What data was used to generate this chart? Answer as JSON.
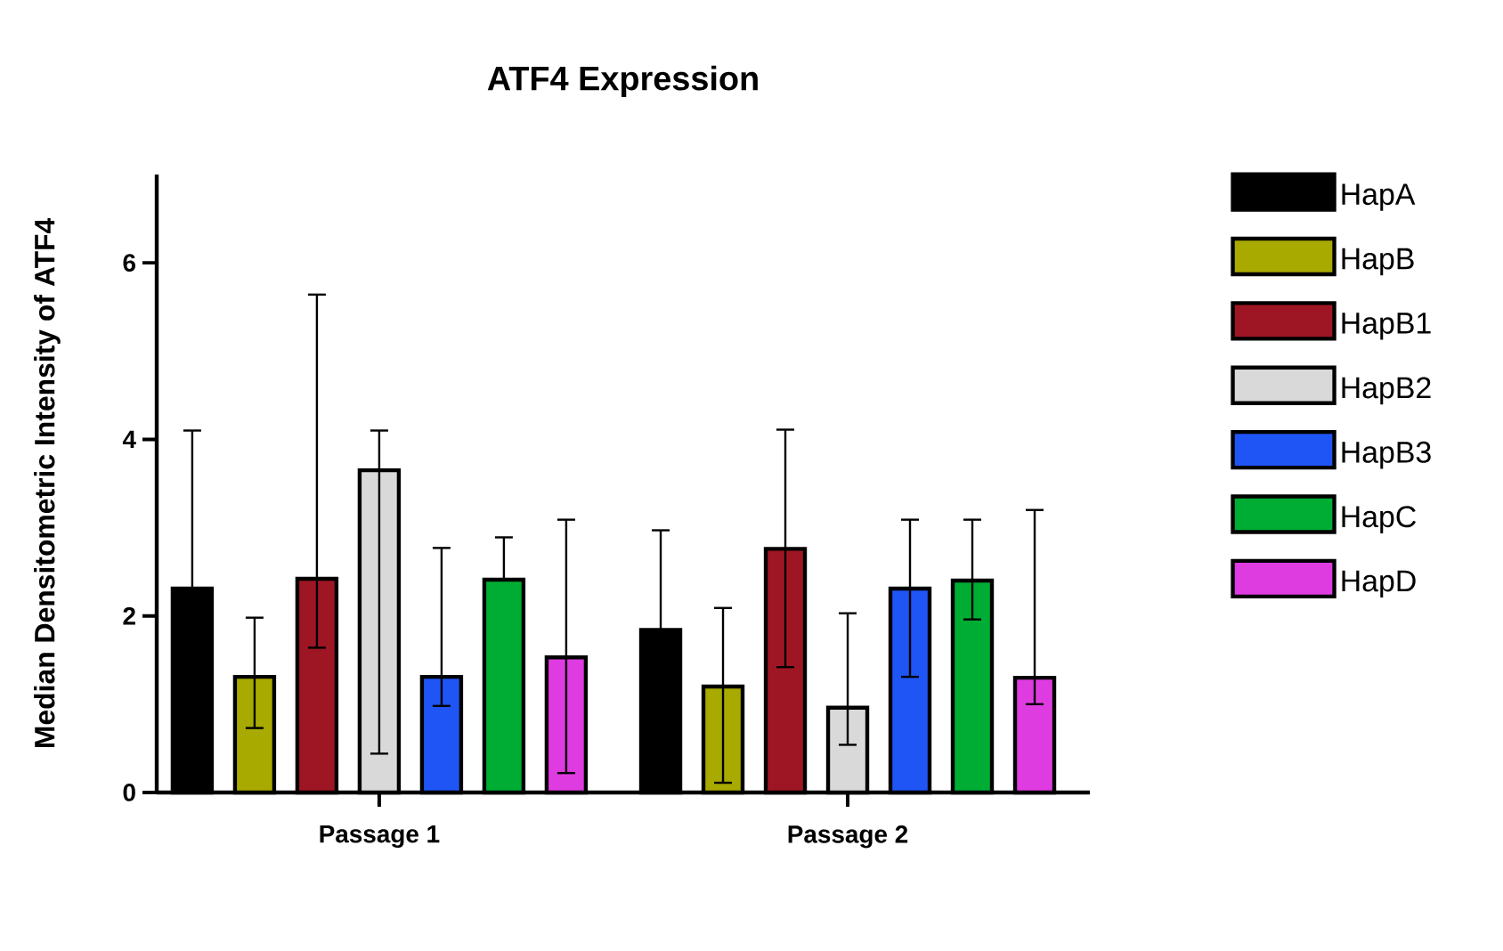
{
  "chart_data": {
    "type": "bar",
    "title": "ATF4 Expression",
    "ylabel": "Median Densitometric Intensity of ATF4",
    "categories": [
      "Passage 1",
      "Passage 2"
    ],
    "ylim": [
      0,
      7
    ],
    "yticks": [
      0,
      2,
      4,
      6
    ],
    "grid": false,
    "legend": "right",
    "series": [
      {
        "name": "HapA",
        "color": "#000000",
        "values": [
          2.31,
          1.84
        ],
        "errors": [
          [
            2.31,
            4.1
          ],
          [
            1.84,
            2.97
          ]
        ]
      },
      {
        "name": "HapB",
        "color": "#a8aa00",
        "values": [
          1.31,
          1.2
        ],
        "errors": [
          [
            0.73,
            1.98
          ],
          [
            0.11,
            2.09
          ]
        ]
      },
      {
        "name": "HapB1",
        "color": "#9e1624",
        "values": [
          2.42,
          2.76
        ],
        "errors": [
          [
            1.64,
            5.64
          ],
          [
            1.42,
            4.11
          ]
        ]
      },
      {
        "name": "HapB2",
        "color": "#d9d9d9",
        "values": [
          3.65,
          0.96
        ],
        "errors": [
          [
            0.44,
            4.1
          ],
          [
            0.54,
            2.03
          ]
        ]
      },
      {
        "name": "HapB3",
        "color": "#1f55f5",
        "values": [
          1.31,
          2.31
        ],
        "errors": [
          [
            0.98,
            2.77
          ],
          [
            1.31,
            3.09
          ]
        ]
      },
      {
        "name": "HapC",
        "color": "#00ad34",
        "values": [
          2.41,
          2.4
        ],
        "errors": [
          [
            2.41,
            2.89
          ],
          [
            1.96,
            3.09
          ]
        ]
      },
      {
        "name": "HapD",
        "color": "#de3ce0",
        "values": [
          1.53,
          1.3
        ],
        "errors": [
          [
            0.22,
            3.09
          ],
          [
            1.0,
            3.2
          ]
        ]
      }
    ]
  }
}
